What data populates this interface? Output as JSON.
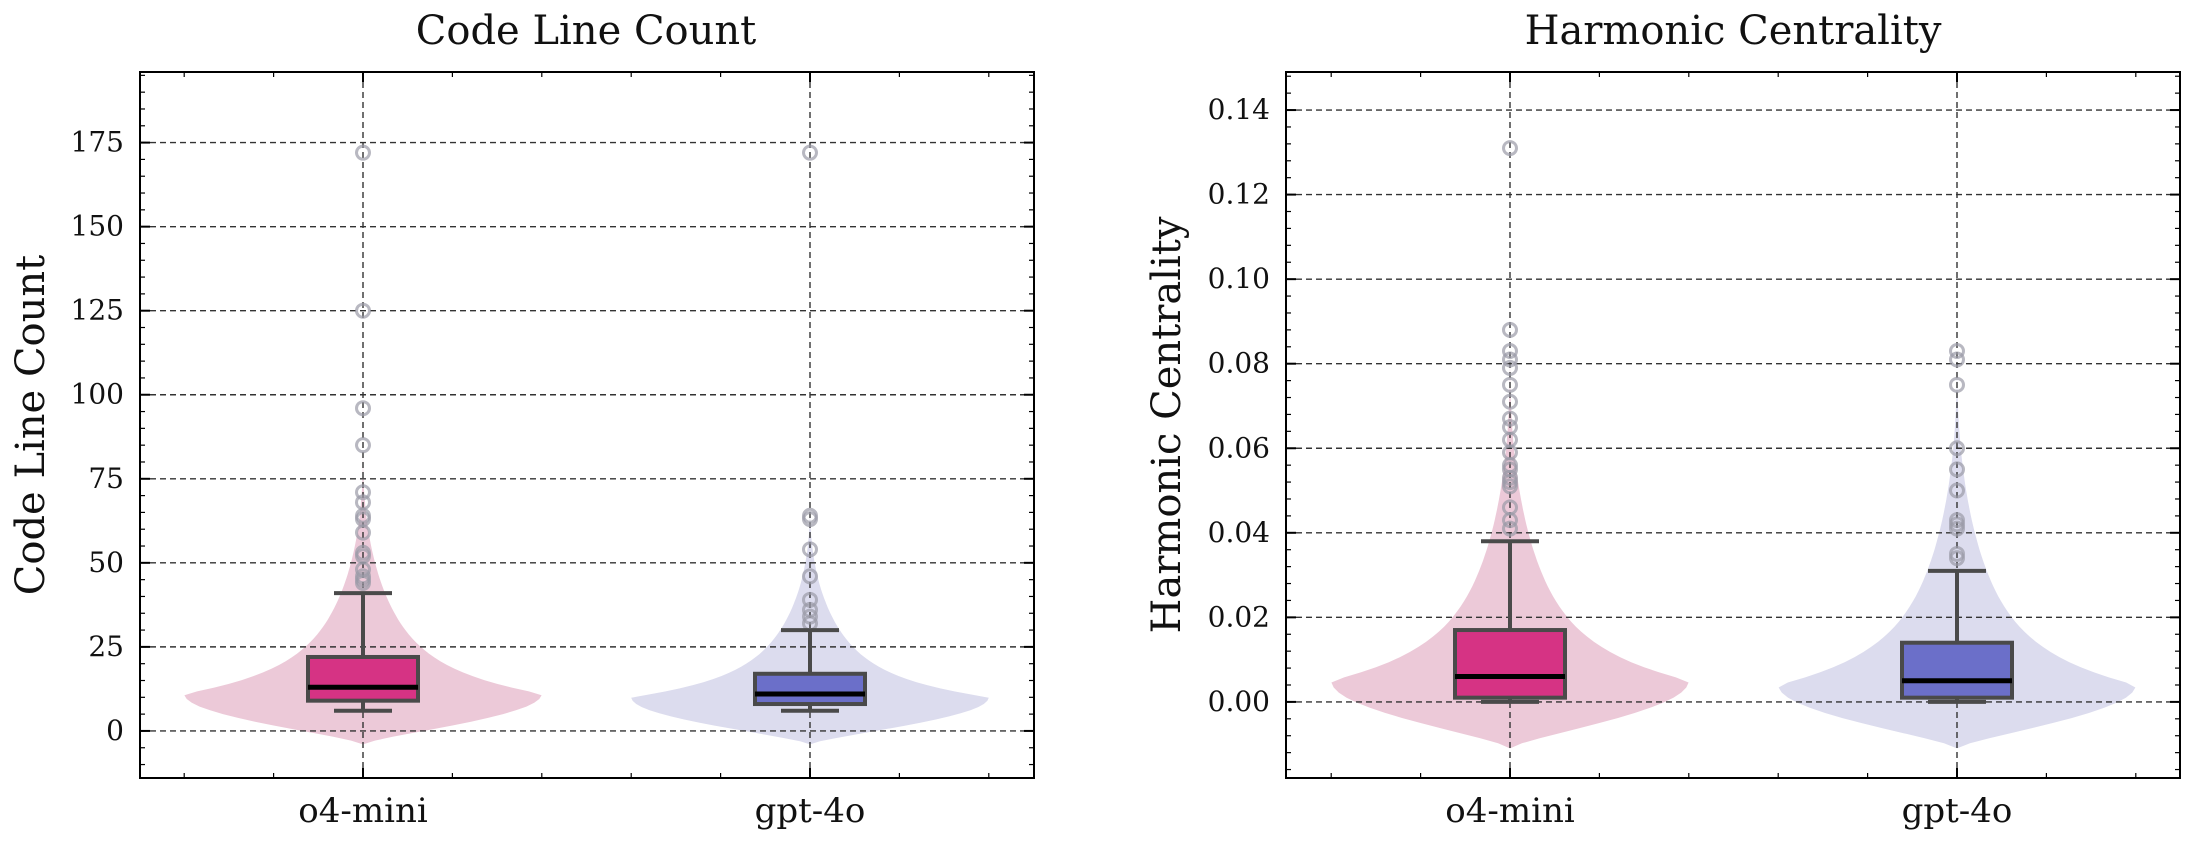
{
  "colors": {
    "o4_mini_box": "#d63384",
    "o4_mini_violin": "#ecc9d8",
    "gpt4o_box": "#6b6fc9",
    "gpt4o_violin": "#dcdcee",
    "outlier": "#9a9aa6",
    "grid": "#333333"
  },
  "chart_data": [
    {
      "type": "box",
      "title": "Code Line Count",
      "xlabel": "",
      "ylabel": "Code Line Count",
      "categories": [
        "o4-mini",
        "gpt-4o"
      ],
      "ylim": [
        -14,
        196
      ],
      "yticks": [
        0,
        25,
        50,
        75,
        100,
        125,
        150,
        175
      ],
      "ytick_labels": [
        "0",
        "25",
        "50",
        "75",
        "100",
        "125",
        "150",
        "175"
      ],
      "grid": true,
      "series": [
        {
          "name": "o4-mini",
          "box": {
            "whisker_low": 6,
            "q1": 9,
            "median": 13,
            "q3": 22,
            "whisker_high": 41
          },
          "outliers": [
            44,
            45,
            46,
            48,
            52,
            53,
            59,
            63,
            64,
            68,
            71,
            85,
            96,
            125,
            172
          ],
          "violin": {
            "range": [
              -4,
              86
            ],
            "peak": 11,
            "max_width": 0.8
          }
        },
        {
          "name": "gpt-4o",
          "box": {
            "whisker_low": 6,
            "q1": 8,
            "median": 11,
            "q3": 17,
            "whisker_high": 30
          },
          "outliers": [
            32,
            34,
            36,
            39,
            46,
            54,
            63,
            64,
            172
          ],
          "violin": {
            "range": [
              -4,
              70
            ],
            "peak": 10,
            "max_width": 0.8
          }
        }
      ]
    },
    {
      "type": "box",
      "title": "Harmonic Centrality",
      "xlabel": "",
      "ylabel": "Harmonic Centrality",
      "categories": [
        "o4-mini",
        "gpt-4o"
      ],
      "ylim": [
        -0.018,
        0.149
      ],
      "yticks": [
        0.0,
        0.02,
        0.04,
        0.06,
        0.08,
        0.1,
        0.12,
        0.14
      ],
      "ytick_labels": [
        "0.00",
        "0.02",
        "0.04",
        "0.06",
        "0.08",
        "0.10",
        "0.12",
        "0.14"
      ],
      "grid": true,
      "series": [
        {
          "name": "o4-mini",
          "box": {
            "whisker_low": 0.0,
            "q1": 0.001,
            "median": 0.006,
            "q3": 0.017,
            "whisker_high": 0.038
          },
          "outliers": [
            0.041,
            0.043,
            0.046,
            0.051,
            0.052,
            0.053,
            0.055,
            0.056,
            0.059,
            0.062,
            0.065,
            0.067,
            0.071,
            0.075,
            0.079,
            0.081,
            0.083,
            0.088,
            0.131
          ],
          "violin": {
            "range": [
              -0.011,
              0.085
            ],
            "peak": 0.005,
            "max_width": 0.8
          }
        },
        {
          "name": "gpt-4o",
          "box": {
            "whisker_low": 0.0,
            "q1": 0.001,
            "median": 0.005,
            "q3": 0.014,
            "whisker_high": 0.031
          },
          "outliers": [
            0.034,
            0.035,
            0.041,
            0.042,
            0.043,
            0.05,
            0.055,
            0.06,
            0.075,
            0.081,
            0.083
          ],
          "violin": {
            "range": [
              -0.011,
              0.085
            ],
            "peak": 0.004,
            "max_width": 0.8
          }
        }
      ]
    }
  ]
}
